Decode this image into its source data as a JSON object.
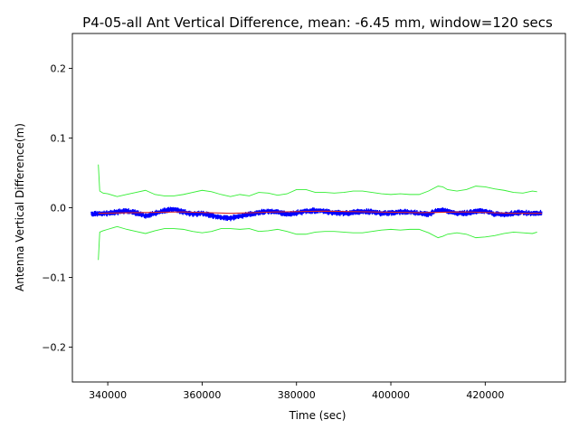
{
  "chart_data": {
    "type": "line",
    "title": "P4-05-all Ant Vertical Difference, mean: -6.45 mm, window=120 secs",
    "xlabel": "Time (sec)",
    "ylabel": "Antenna Vertical Difference(m)",
    "xlim": [
      332500,
      437000
    ],
    "ylim": [
      -0.25,
      0.25
    ],
    "xticks": [
      340000,
      360000,
      380000,
      400000,
      420000
    ],
    "xtick_labels": [
      "340000",
      "360000",
      "380000",
      "400000",
      "420000"
    ],
    "yticks": [
      0.2,
      0.1,
      0.0,
      -0.1,
      -0.2
    ],
    "ytick_labels": [
      "0.2",
      "0.1",
      "0.0",
      "−0.1",
      "−0.2"
    ],
    "grid": false,
    "series": [
      {
        "role": "raw",
        "color": "#0000ff",
        "x": [
          336500,
          338000,
          340000,
          342000,
          344000,
          346000,
          348000,
          350000,
          352000,
          354000,
          356000,
          358000,
          360000,
          362000,
          364000,
          366000,
          368000,
          370000,
          372000,
          374000,
          376000,
          378000,
          380000,
          382000,
          384000,
          386000,
          388000,
          390000,
          392000,
          394000,
          396000,
          398000,
          400000,
          402000,
          404000,
          406000,
          408000,
          410000,
          411000,
          412000,
          414000,
          416000,
          418000,
          420000,
          422000,
          424000,
          426000,
          428000,
          430000,
          432000
        ],
        "y": [
          -0.009,
          -0.009,
          -0.008,
          -0.006,
          -0.005,
          -0.007,
          -0.012,
          -0.008,
          -0.004,
          -0.002,
          -0.006,
          -0.009,
          -0.008,
          -0.011,
          -0.014,
          -0.015,
          -0.012,
          -0.009,
          -0.007,
          -0.005,
          -0.006,
          -0.01,
          -0.007,
          -0.005,
          -0.004,
          -0.005,
          -0.007,
          -0.008,
          -0.007,
          -0.005,
          -0.006,
          -0.008,
          -0.007,
          -0.006,
          -0.006,
          -0.008,
          -0.009,
          -0.004,
          -0.003,
          -0.005,
          -0.008,
          -0.008,
          -0.005,
          -0.005,
          -0.009,
          -0.01,
          -0.008,
          -0.007,
          -0.008,
          -0.008
        ]
      },
      {
        "role": "mean",
        "color": "#d62728",
        "x": [
          338000,
          346000,
          356000,
          366000,
          376000,
          386000,
          396000,
          406000,
          416000,
          426000,
          432000
        ],
        "y": [
          -0.008,
          -0.007,
          -0.006,
          -0.008,
          -0.006,
          -0.005,
          -0.006,
          -0.007,
          -0.006,
          -0.008,
          -0.008
        ]
      },
      {
        "role": "upper-envelope",
        "color": "#33ee33",
        "x": [
          338000,
          338300,
          339000,
          340000,
          342000,
          344000,
          346000,
          348000,
          350000,
          352000,
          354000,
          356000,
          358000,
          360000,
          362000,
          364000,
          366000,
          368000,
          370000,
          372000,
          374000,
          376000,
          378000,
          380000,
          382000,
          384000,
          386000,
          388000,
          390000,
          392000,
          394000,
          396000,
          398000,
          400000,
          402000,
          404000,
          406000,
          408000,
          410000,
          411000,
          412000,
          414000,
          416000,
          418000,
          420000,
          422000,
          424000,
          426000,
          428000,
          430000,
          431000
        ],
        "y": [
          0.062,
          0.024,
          0.021,
          0.02,
          0.016,
          0.019,
          0.022,
          0.025,
          0.019,
          0.017,
          0.017,
          0.019,
          0.022,
          0.025,
          0.023,
          0.019,
          0.016,
          0.019,
          0.017,
          0.022,
          0.021,
          0.018,
          0.02,
          0.026,
          0.026,
          0.022,
          0.022,
          0.021,
          0.022,
          0.024,
          0.024,
          0.022,
          0.02,
          0.019,
          0.02,
          0.019,
          0.019,
          0.024,
          0.031,
          0.03,
          0.026,
          0.024,
          0.026,
          0.031,
          0.03,
          0.027,
          0.025,
          0.022,
          0.021,
          0.024,
          0.023
        ]
      },
      {
        "role": "lower-envelope",
        "color": "#33ee33",
        "x": [
          338000,
          338300,
          339000,
          340000,
          342000,
          344000,
          346000,
          348000,
          350000,
          352000,
          354000,
          356000,
          358000,
          360000,
          362000,
          364000,
          366000,
          368000,
          370000,
          372000,
          374000,
          376000,
          378000,
          380000,
          382000,
          384000,
          386000,
          388000,
          390000,
          392000,
          394000,
          396000,
          398000,
          400000,
          402000,
          404000,
          406000,
          408000,
          410000,
          411000,
          412000,
          414000,
          416000,
          418000,
          420000,
          422000,
          424000,
          426000,
          428000,
          430000,
          431000
        ],
        "y": [
          -0.075,
          -0.035,
          -0.033,
          -0.031,
          -0.027,
          -0.031,
          -0.034,
          -0.037,
          -0.033,
          -0.03,
          -0.03,
          -0.031,
          -0.034,
          -0.036,
          -0.034,
          -0.03,
          -0.03,
          -0.031,
          -0.03,
          -0.034,
          -0.033,
          -0.031,
          -0.034,
          -0.038,
          -0.038,
          -0.035,
          -0.034,
          -0.034,
          -0.035,
          -0.036,
          -0.036,
          -0.034,
          -0.032,
          -0.031,
          -0.032,
          -0.031,
          -0.031,
          -0.036,
          -0.043,
          -0.041,
          -0.038,
          -0.036,
          -0.038,
          -0.043,
          -0.042,
          -0.04,
          -0.037,
          -0.035,
          -0.036,
          -0.037,
          -0.035
        ]
      }
    ]
  }
}
